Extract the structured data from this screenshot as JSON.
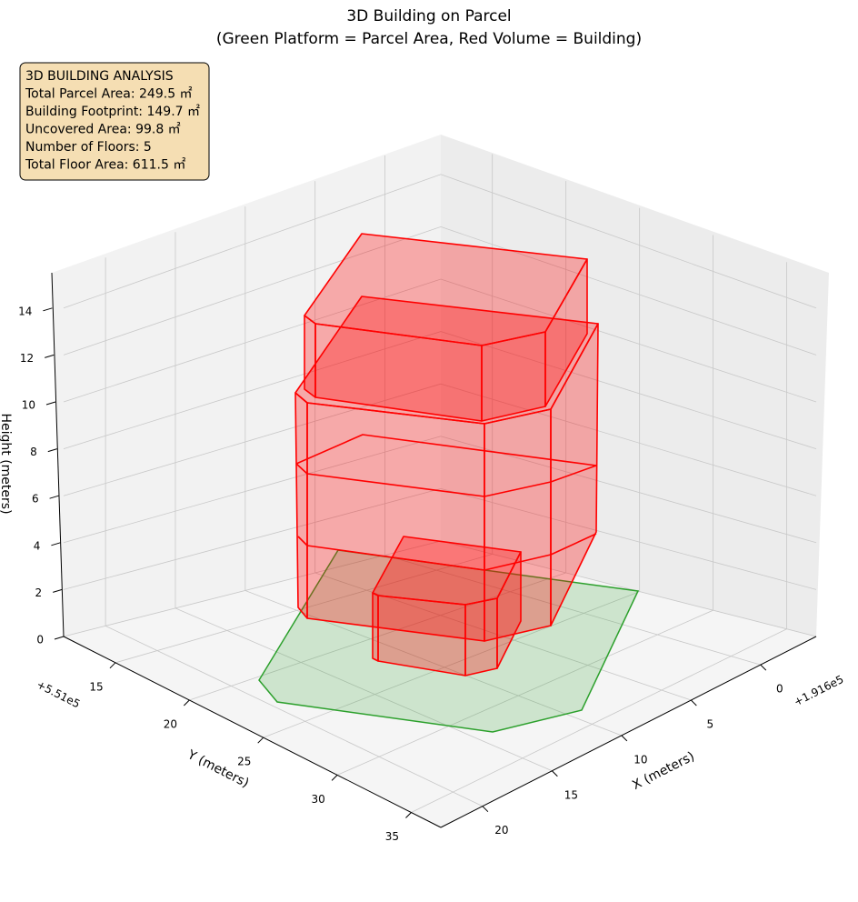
{
  "chart_data": {
    "type": "3d",
    "title": "3D Building on Parcel",
    "subtitle": "(Green Platform = Parcel Area, Red Volume = Building)",
    "annotation": [
      "3D BUILDING ANALYSIS",
      "Total Parcel Area: 249.5 ㎡",
      "Building Footprint: 149.7 ㎡",
      "Uncovered Area: 99.8 ㎡",
      "Number of Floors: 5",
      "Total Floor Area: 611.5 ㎡"
    ],
    "xlabel": "X (meters)",
    "ylabel": "Y (meters)",
    "zlabel": "Height (meters)",
    "x_offset": "+1.916e5",
    "y_offset": "+5.51e5",
    "xlim": [
      -4,
      23
    ],
    "ylim": [
      11.5,
      37
    ],
    "zlim": [
      0,
      15.5
    ],
    "xticks": [
      0,
      5,
      10,
      15,
      20
    ],
    "yticks": [
      15,
      20,
      25,
      30,
      35
    ],
    "zticks": [
      0,
      2,
      4,
      6,
      8,
      10,
      12,
      14
    ],
    "grid": true,
    "parcel_color": "#2ca02c",
    "building_color": "#ff0000"
  }
}
